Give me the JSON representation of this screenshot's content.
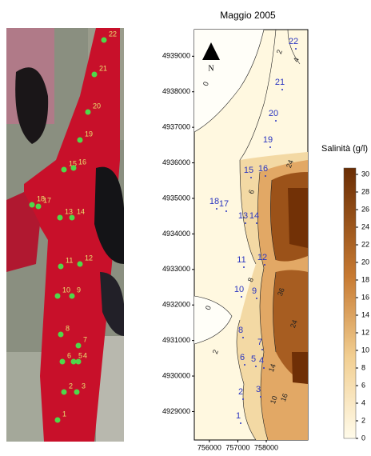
{
  "title": "Maggio 2005",
  "north_label": "N",
  "colorbar": {
    "label": "Salinità (g/l)",
    "ticks": [
      0,
      2,
      4,
      6,
      8,
      10,
      12,
      14,
      16,
      18,
      20,
      22,
      24,
      26,
      28,
      30
    ]
  },
  "map": {
    "xlim": [
      755470,
      759460
    ],
    "ylim": [
      4928200,
      4939750
    ],
    "xticks": [
      756000,
      757000,
      758000
    ],
    "yticks": [
      4929000,
      4930000,
      4931000,
      4932000,
      4933000,
      4934000,
      4935000,
      4936000,
      4937000,
      4938000,
      4939000
    ],
    "stations": [
      "1",
      "2",
      "3",
      "4",
      "5",
      "6",
      "7",
      "8",
      "9",
      "10",
      "11",
      "12",
      "13",
      "14",
      "15",
      "16",
      "17",
      "18",
      "19",
      "20",
      "21",
      "22"
    ],
    "contour_labels": [
      "0",
      "2",
      "4",
      "0",
      "2",
      "6",
      "24",
      "24",
      "36",
      "10",
      "16",
      "14",
      "8"
    ]
  }
}
